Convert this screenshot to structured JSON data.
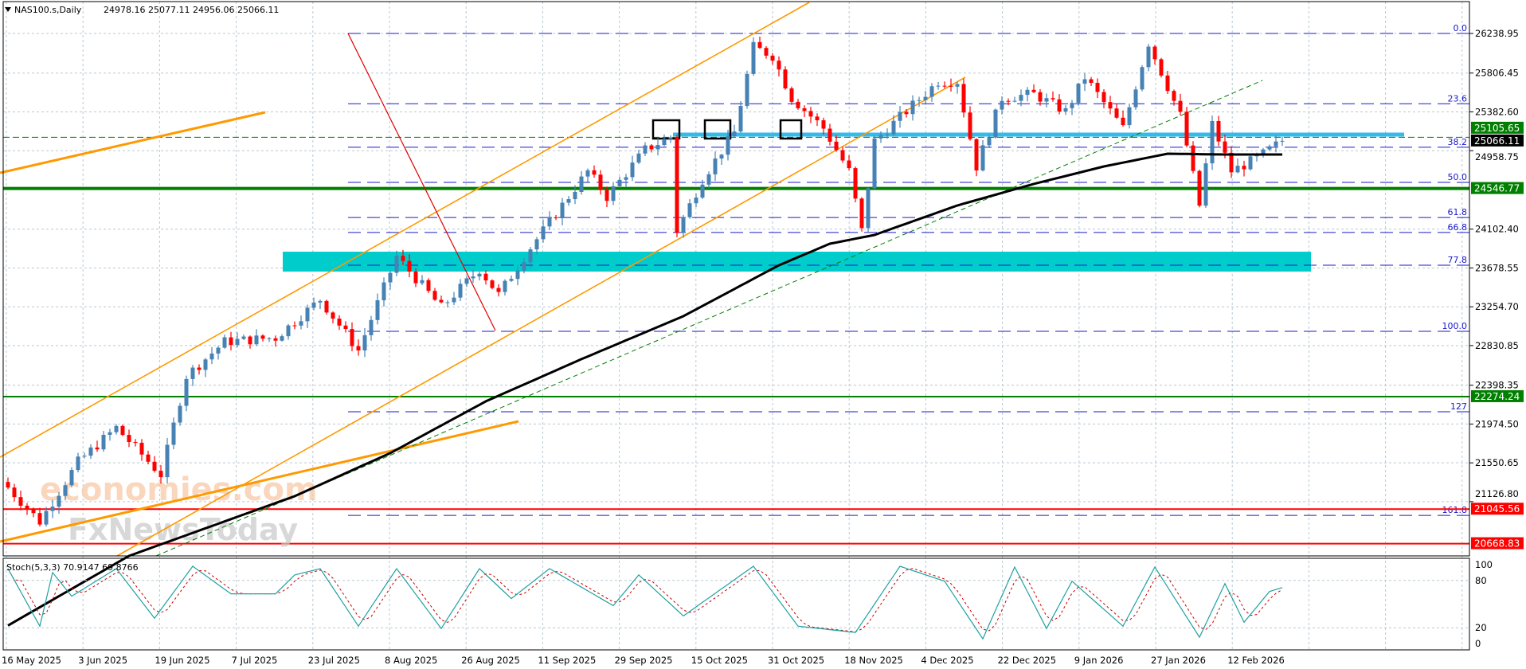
{
  "header": {
    "symbol": "NAS100.s,Daily",
    "ohlc": "24978.16 25077.11 24956.06 25066.11"
  },
  "colors": {
    "bull": "#4682b4",
    "bear": "#ff0000",
    "ma": "#000000",
    "fib": "#1a1acc",
    "grid": "#b9c9d3",
    "channel": "#ff9900",
    "zone": "#00cccc",
    "resistance": "#33bbee",
    "support_green": "#007f00",
    "support_red": "#ff0000",
    "stoch_k": "#20a0a0",
    "stoch_d": "#cc0000"
  },
  "watermark": {
    "line1": "economies.com",
    "line2": "FxNewsToday"
  },
  "chart_data": {
    "type": "candlestick",
    "title": "NAS100.s,Daily",
    "bars": 201,
    "close_path": [
      [
        0,
        21282
      ],
      [
        5,
        20909
      ],
      [
        11,
        21561
      ],
      [
        17,
        21935
      ],
      [
        24,
        21422
      ],
      [
        28,
        22500
      ],
      [
        34,
        22874
      ],
      [
        42,
        22917
      ],
      [
        49,
        23335
      ],
      [
        55,
        22778
      ],
      [
        61,
        23804
      ],
      [
        68,
        23248
      ],
      [
        74,
        23665
      ],
      [
        77,
        23387
      ],
      [
        82,
        23900
      ],
      [
        91,
        24735
      ],
      [
        94,
        24456
      ],
      [
        100,
        24970
      ],
      [
        104,
        25109
      ],
      [
        105,
        24083
      ],
      [
        109,
        24648
      ],
      [
        114,
        25160
      ],
      [
        117,
        26091
      ],
      [
        120,
        25995
      ],
      [
        123,
        25535
      ],
      [
        128,
        25204
      ],
      [
        132,
        24735
      ],
      [
        134,
        24083
      ],
      [
        136,
        25065
      ],
      [
        146,
        25717
      ],
      [
        149,
        25717
      ],
      [
        152,
        24787
      ],
      [
        156,
        25535
      ],
      [
        161,
        25578
      ],
      [
        166,
        25387
      ],
      [
        169,
        25761
      ],
      [
        175,
        25204
      ],
      [
        179,
        26135
      ],
      [
        184,
        25343
      ],
      [
        187,
        24361
      ],
      [
        189,
        25248
      ],
      [
        192,
        24735
      ],
      [
        196,
        24874
      ],
      [
        200,
        25066.11
      ]
    ],
    "moving_average": [
      [
        19,
        20535
      ],
      [
        45,
        21187
      ],
      [
        60,
        21657
      ],
      [
        75,
        22222
      ],
      [
        90,
        22683
      ],
      [
        106,
        23152
      ],
      [
        121,
        23708
      ],
      [
        129,
        23943
      ],
      [
        136,
        24039
      ],
      [
        149,
        24361
      ],
      [
        161,
        24596
      ],
      [
        172,
        24787
      ],
      [
        182,
        24926
      ],
      [
        191,
        24917
      ],
      [
        200,
        24917
      ]
    ],
    "y_ticks": [
      "26238.95",
      "25806.45",
      "25382.60",
      "24958.75",
      "24102.40",
      "23678.55",
      "23254.70",
      "22830.85",
      "22398.35",
      "21974.50",
      "21550.65",
      "21126.80"
    ],
    "ylim": [
      20600,
      26600
    ],
    "x_ticks": [
      "16 May 2025",
      "3 Jun 2025",
      "19 Jun 2025",
      "7 Jul 2025",
      "23 Jul 2025",
      "8 Aug 2025",
      "26 Aug 2025",
      "11 Sep 2025",
      "29 Sep 2025",
      "15 Oct 2025",
      "31 Oct 2025",
      "18 Nov 2025",
      "4 Dec 2025",
      "22 Dec 2025",
      "9 Jan 2026",
      "27 Jan 2026",
      "12 Feb 2026"
    ],
    "levels": [
      {
        "price": 25105.65,
        "label": "25105.65",
        "color": "#007f00",
        "style": "dashed-thin"
      },
      {
        "price": 24546.77,
        "label": "24546.77",
        "color": "#007f00",
        "style": "thick"
      },
      {
        "price": 22274.24,
        "label": "22274.24",
        "color": "#007f00",
        "style": "solid"
      },
      {
        "price": 21045.56,
        "label": "21045.56",
        "color": "#ff0000",
        "style": "solid"
      },
      {
        "price": 20668.83,
        "label": "20668.83",
        "color": "#ff0000",
        "style": "solid"
      }
    ],
    "current_price": "25066.11",
    "fibonacci": {
      "high": 26238.95,
      "low": 22987,
      "levels": [
        {
          "ratio": 0.0,
          "label": "0.0"
        },
        {
          "ratio": 23.6,
          "label": "23.6"
        },
        {
          "ratio": 38.2,
          "label": "38.2"
        },
        {
          "ratio": 50.0,
          "label": "50.0"
        },
        {
          "ratio": 61.8,
          "label": "61.8"
        },
        {
          "ratio": 66.8,
          "label": "66.8"
        },
        {
          "ratio": 77.8,
          "label": "77.8"
        },
        {
          "ratio": 100.0,
          "label": "100.0"
        },
        {
          "ratio": 127,
          "label": "127"
        },
        {
          "ratio": 161.8,
          "label": "161.8"
        }
      ]
    },
    "zone": {
      "top": 23856,
      "bottom": 23639
    },
    "resistance_band": 25135,
    "stochastic": {
      "label": "Stoch(5,3,3) 70.9147 69.8766",
      "y_ticks": [
        "100",
        "80",
        "20",
        "0"
      ],
      "ylim": [
        0,
        100
      ],
      "k_path": [
        [
          0,
          95
        ],
        [
          5,
          22
        ],
        [
          7,
          90
        ],
        [
          10,
          60
        ],
        [
          17,
          95
        ],
        [
          23,
          32
        ],
        [
          29,
          98
        ],
        [
          35,
          63
        ],
        [
          42,
          63
        ],
        [
          45,
          87
        ],
        [
          49,
          95
        ],
        [
          55,
          22
        ],
        [
          61,
          95
        ],
        [
          68,
          19
        ],
        [
          74,
          95
        ],
        [
          79,
          57
        ],
        [
          85,
          95
        ],
        [
          95,
          48
        ],
        [
          99,
          87
        ],
        [
          106,
          35
        ],
        [
          117,
          98
        ],
        [
          124,
          22
        ],
        [
          133,
          14
        ],
        [
          140,
          98
        ],
        [
          147,
          79
        ],
        [
          153,
          6
        ],
        [
          158,
          97
        ],
        [
          163,
          19
        ],
        [
          167,
          79
        ],
        [
          175,
          22
        ],
        [
          180,
          97
        ],
        [
          187,
          8
        ],
        [
          191,
          76
        ],
        [
          194,
          27
        ],
        [
          198,
          66
        ],
        [
          200,
          70.9147
        ]
      ]
    }
  }
}
